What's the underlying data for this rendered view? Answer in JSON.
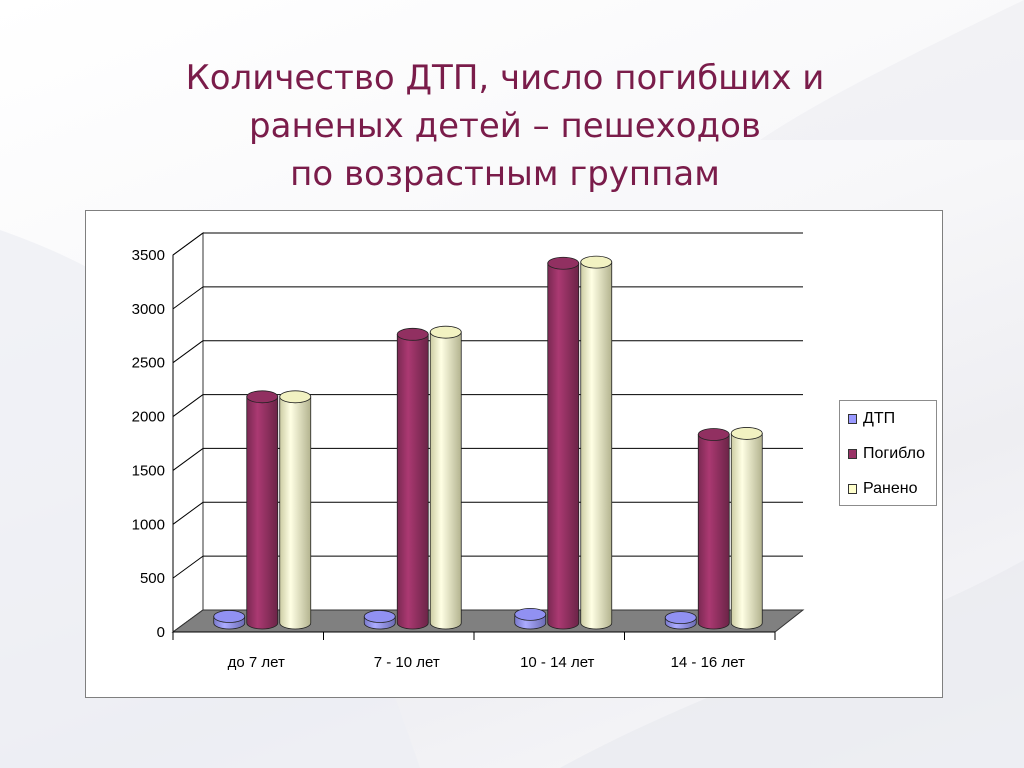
{
  "slide": {
    "title_lines": [
      "Количество ДТП, число погибших и",
      "раненых детей – пешеходов",
      "по возрастным группам"
    ],
    "colors": {
      "title": "#7a1c4a"
    }
  },
  "chart_data": {
    "type": "bar",
    "title": "",
    "xlabel": "",
    "ylabel": "",
    "categories": [
      "до 7 лет",
      "7 - 10 лет",
      "10 - 14 лет",
      "14 - 16 лет"
    ],
    "series": [
      {
        "name": "ДТП",
        "color": "#9999ff",
        "values": [
          60,
          60,
          80,
          50
        ]
      },
      {
        "name": "Погибло",
        "color": "#993366",
        "values": [
          2100,
          2680,
          3340,
          1750
        ]
      },
      {
        "name": "Ранено",
        "color": "#ffffcc",
        "values": [
          2100,
          2700,
          3350,
          1760
        ]
      }
    ],
    "ylim": [
      0,
      3500
    ],
    "yticks": [
      "0",
      "500",
      "1000",
      "1500",
      "2000",
      "2500",
      "3000",
      "3500"
    ],
    "grid": true,
    "legend_position": "right",
    "style": "3d-cylinder"
  }
}
